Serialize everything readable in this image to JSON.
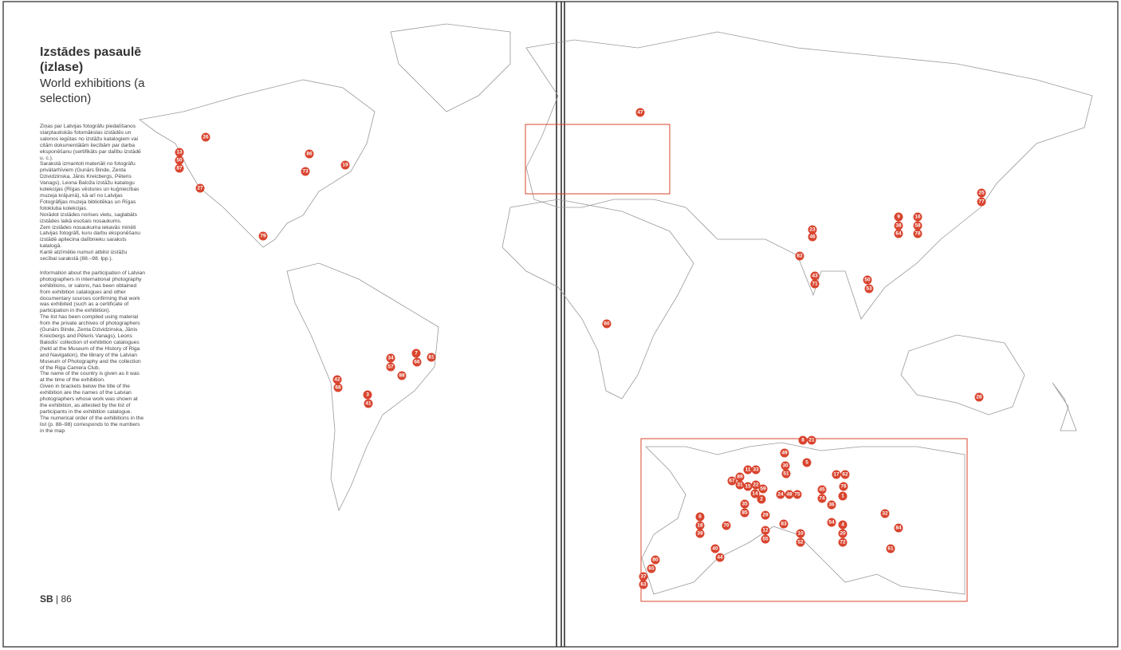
{
  "header": {
    "title_lv": "Izstādes pasaulē (izlase)",
    "title_en": "World exhibitions (a selection)"
  },
  "text_lv": [
    "Ziņas par Latvijas fotogrāfu piedalīšanos starptautiskās fotomākslas izstādēs un salonos iegūtas no izstāžu katalogiem vai citām dokumentālām liecībām par darba eksponēšanu (sertifikāts par dalību izstādē u. c.).",
    "Sarakstā izmantoti materiāli no fotogrāfu privātarhīviem (Gunārs Binde, Zenta Dzividzinska, Jānis Kreicbergs, Pēteris Vanags), Leona Baloža izstāžu katalogu kolekcijas (Rīgas vēstures un kuģniecības muzeja krājumā), kā arī no Latvijas Fotogrāfijas muzeja bibliotēkas un Rīgas fotokluba kolekcijas.",
    "Norādot izstādes norises vietu, saglabāts izstādes laikā esošais nosaukums.",
    "Zem izstādes nosaukuma iekavās minēti Latvijas fotogrāfi, kuru darbu eksponēšanu izstādē apliecina dalībnieku saraksts katalogā.",
    "Kartē atzīmētie numuri atbilst izstāžu secībai sarakstā (88.–98. lpp.)."
  ],
  "text_en": [
    "Information about the participation of Latvian photographers in international photography exhibitions, or salons, has been obtained from exhibition catalogues and other documentary sources confirming that work was exhibited (such as a certificate of participation in the exhibition).",
    "The list has been compiled using material from the private archives of photographers (Gunārs Binde, Zenta Dzividzinska, Jānis Kreicbergs and Pēteris Vanags), Leons Balodis' collection of exhibition catalogues (held at the Museum of the History of Riga and Navigation), the library of the Latvian Museum of Photography and the collection of the Riga Camera Club.",
    "The name of the country is given as it was at the time of the exhibition.",
    "Given in brackets below the title of the exhibition are the names of the Latvian photographers whose work was shown at the exhibition, as attested by the list of participants in the exhibition catalogue.",
    "The numerical order of the exhibitions in the list (p. 88–98) corresponds to the numbers in the map"
  ],
  "footer": {
    "logo": "SB",
    "page": "86"
  },
  "markers": [
    "26",
    "13",
    "50",
    "87",
    "86",
    "73",
    "19",
    "27",
    "79",
    "7",
    "66",
    "81",
    "34",
    "57",
    "88",
    "42",
    "68",
    "3",
    "41",
    "47",
    "25",
    "77",
    "9",
    "16",
    "38",
    "58",
    "64",
    "78",
    "23",
    "46",
    "82",
    "43",
    "71",
    "50",
    "53",
    "60",
    "28",
    "8",
    "21",
    "49",
    "30",
    "51",
    "5",
    "11",
    "33",
    "89",
    "67",
    "31",
    "15",
    "22",
    "59",
    "14",
    "2",
    "35",
    "85",
    "17",
    "62",
    "76",
    "45",
    "74",
    "1",
    "24",
    "48",
    "75",
    "36",
    "6",
    "18",
    "39",
    "70",
    "29",
    "83",
    "12",
    "55",
    "10",
    "52",
    "54",
    "4",
    "20",
    "72",
    "32",
    "84",
    "61",
    "40",
    "44",
    "80",
    "65",
    "37",
    "63"
  ]
}
